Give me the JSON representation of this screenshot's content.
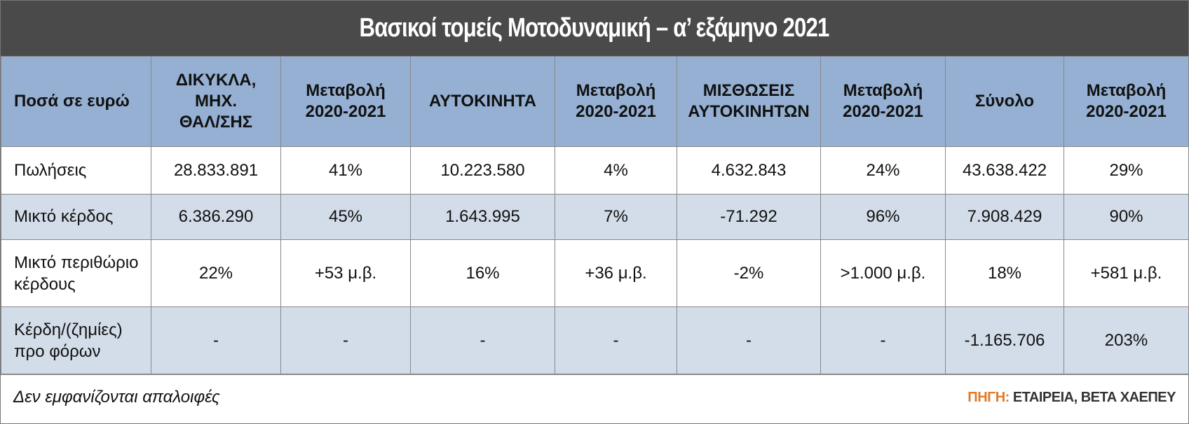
{
  "header": {
    "title": "Βασικοί τομείς Μοτοδυναμική – α’ εξάμηνο 2021"
  },
  "table": {
    "columns": [
      "Ποσά σε ευρώ",
      "ΔΙΚΥΚΛΑ,\nΜΗΧ.\nΘΑΛ/ΣΗΣ",
      "Μεταβολή\n2020-2021",
      "ΑΥΤΟΚΙΝΗΤΑ",
      "Μεταβολή\n2020-2021",
      "ΜΙΣΘΩΣΕΙΣ\nΑΥΤΟΚΙΝΗΤΩΝ",
      "Μεταβολή\n2020-2021",
      "Σύνολο",
      "Μεταβολή\n2020-2021"
    ],
    "rows": [
      [
        "Πωλήσεις",
        "28.833.891",
        "41%",
        "10.223.580",
        "4%",
        "4.632.843",
        "24%",
        "43.638.422",
        "29%"
      ],
      [
        "Μικτό κέρδος",
        "6.386.290",
        "45%",
        "1.643.995",
        "7%",
        "-71.292",
        "96%",
        "7.908.429",
        "90%"
      ],
      [
        "Μικτό περιθώριο\nκέρδους",
        "22%",
        "+53 μ.β.",
        "16%",
        "+36 μ.β.",
        "-2%",
        ">1.000 μ.β.",
        "18%",
        "+581 μ.β."
      ],
      [
        "Κέρδη/(ζημίες)\nπρο φόρων",
        "-",
        "-",
        "-",
        "-",
        "-",
        "-",
        "-1.165.706",
        "203%"
      ]
    ]
  },
  "footer": {
    "note": "Δεν εμφανίζονται απαλοιφές",
    "source_label": "ΠΗΓΗ:",
    "source": "ΕΤΑΙΡΕΙΑ, ΒΕΤΑ ΧΑΕΠΕΥ"
  }
}
